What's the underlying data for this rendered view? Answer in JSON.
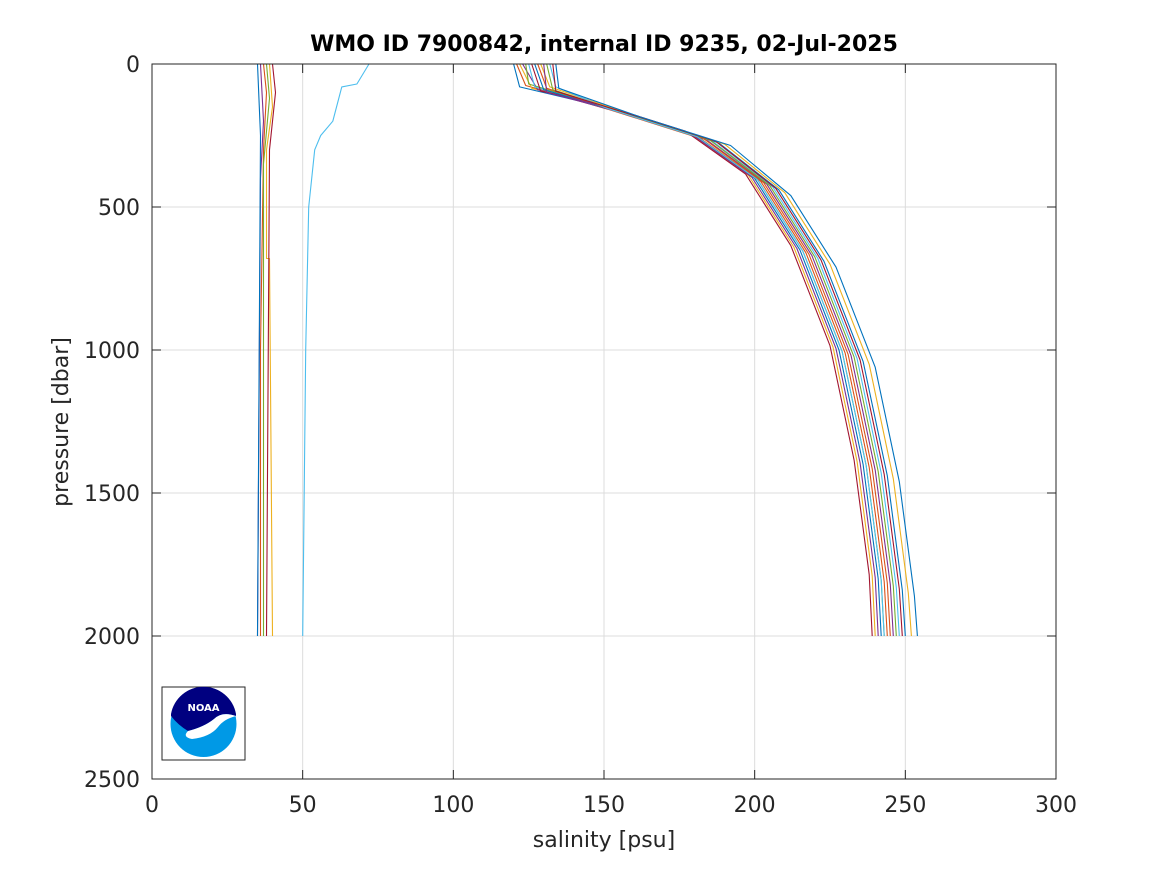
{
  "chart_data": {
    "type": "line",
    "title": "WMO ID 7900842, internal ID 9235, 02-Jul-2025",
    "xlabel": "salinity [psu]",
    "ylabel": "pressure [dbar]",
    "xlim": [
      0,
      300
    ],
    "ylim": [
      0,
      2500
    ],
    "y_reversed": true,
    "grid": true,
    "legend": "none",
    "x_ticks": [
      "0",
      "50",
      "100",
      "150",
      "200",
      "250",
      "300"
    ],
    "y_ticks": [
      "0",
      "500",
      "1000",
      "1500",
      "2000",
      "2500"
    ],
    "logo": "NOAA",
    "series": [
      {
        "color": "#0072BD",
        "points": [
          [
            120,
            0
          ],
          [
            122,
            80
          ],
          [
            150,
            150
          ],
          [
            180,
            250
          ],
          [
            200,
            400
          ],
          [
            215,
            650
          ],
          [
            228,
            1000
          ],
          [
            236,
            1400
          ],
          [
            241,
            1800
          ],
          [
            242,
            2000
          ]
        ]
      },
      {
        "color": "#D95319",
        "points": [
          [
            121,
            0
          ],
          [
            124,
            75
          ],
          [
            152,
            160
          ],
          [
            182,
            260
          ],
          [
            202,
            410
          ],
          [
            217,
            660
          ],
          [
            230,
            1010
          ],
          [
            238,
            1410
          ],
          [
            243,
            1810
          ],
          [
            244,
            2000
          ]
        ]
      },
      {
        "color": "#EDB120",
        "points": [
          [
            122,
            0
          ],
          [
            126,
            85
          ],
          [
            148,
            140
          ],
          [
            178,
            240
          ],
          [
            198,
            390
          ],
          [
            213,
            640
          ],
          [
            226,
            990
          ],
          [
            234,
            1390
          ],
          [
            239,
            1790
          ],
          [
            240,
            2000
          ]
        ]
      },
      {
        "color": "#7E2F8E",
        "points": [
          [
            123,
            0
          ],
          [
            128,
            90
          ],
          [
            154,
            165
          ],
          [
            184,
            265
          ],
          [
            204,
            420
          ],
          [
            219,
            670
          ],
          [
            232,
            1020
          ],
          [
            240,
            1420
          ],
          [
            245,
            1820
          ],
          [
            246,
            2000
          ]
        ]
      },
      {
        "color": "#77AC30",
        "points": [
          [
            124,
            0
          ],
          [
            125,
            70
          ],
          [
            150,
            150
          ],
          [
            181,
            255
          ],
          [
            201,
            405
          ],
          [
            216,
            655
          ],
          [
            229,
            1005
          ],
          [
            237,
            1405
          ],
          [
            242,
            1805
          ],
          [
            243,
            2000
          ]
        ]
      },
      {
        "color": "#4DBEEE",
        "points": [
          [
            125,
            0
          ],
          [
            127,
            80
          ],
          [
            156,
            170
          ],
          [
            186,
            270
          ],
          [
            206,
            430
          ],
          [
            221,
            680
          ],
          [
            234,
            1030
          ],
          [
            242,
            1430
          ],
          [
            247,
            1830
          ],
          [
            248,
            2000
          ]
        ]
      },
      {
        "color": "#A2142F",
        "points": [
          [
            126,
            0
          ],
          [
            129,
            95
          ],
          [
            147,
            135
          ],
          [
            177,
            235
          ],
          [
            197,
            385
          ],
          [
            212,
            635
          ],
          [
            225,
            985
          ],
          [
            233,
            1385
          ],
          [
            238,
            1785
          ],
          [
            239,
            2000
          ]
        ]
      },
      {
        "color": "#0072BD",
        "points": [
          [
            127,
            0
          ],
          [
            130,
            90
          ],
          [
            158,
            175
          ],
          [
            188,
            275
          ],
          [
            208,
            440
          ],
          [
            223,
            690
          ],
          [
            236,
            1040
          ],
          [
            244,
            1440
          ],
          [
            249,
            1840
          ],
          [
            250,
            2000
          ]
        ]
      },
      {
        "color": "#D95319",
        "points": [
          [
            128,
            0
          ],
          [
            131,
            85
          ],
          [
            153,
            160
          ],
          [
            183,
            260
          ],
          [
            203,
            415
          ],
          [
            218,
            665
          ],
          [
            231,
            1015
          ],
          [
            239,
            1415
          ],
          [
            244,
            1815
          ],
          [
            245,
            2000
          ]
        ]
      },
      {
        "color": "#EDB120",
        "points": [
          [
            129,
            0
          ],
          [
            132,
            80
          ],
          [
            160,
            180
          ],
          [
            190,
            280
          ],
          [
            210,
            450
          ],
          [
            225,
            700
          ],
          [
            238,
            1050
          ],
          [
            246,
            1450
          ],
          [
            251,
            1850
          ],
          [
            252,
            2000
          ]
        ]
      },
      {
        "color": "#7E2F8E",
        "points": [
          [
            130,
            0
          ],
          [
            131,
            100
          ],
          [
            149,
            145
          ],
          [
            179,
            245
          ],
          [
            199,
            395
          ],
          [
            214,
            645
          ],
          [
            227,
            995
          ],
          [
            235,
            1395
          ],
          [
            240,
            1795
          ],
          [
            241,
            2000
          ]
        ]
      },
      {
        "color": "#77AC30",
        "points": [
          [
            131,
            0
          ],
          [
            133,
            90
          ],
          [
            155,
            165
          ],
          [
            185,
            265
          ],
          [
            205,
            425
          ],
          [
            220,
            675
          ],
          [
            233,
            1025
          ],
          [
            241,
            1425
          ],
          [
            246,
            1825
          ],
          [
            247,
            2000
          ]
        ]
      },
      {
        "color": "#4DBEEE",
        "points": [
          [
            132,
            0
          ],
          [
            134,
            80
          ],
          [
            151,
            155
          ],
          [
            181,
            255
          ],
          [
            201,
            405
          ],
          [
            216,
            655
          ],
          [
            229,
            1005
          ],
          [
            237,
            1405
          ],
          [
            242,
            1805
          ],
          [
            243,
            2000
          ]
        ]
      },
      {
        "color": "#A2142F",
        "points": [
          [
            133,
            0
          ],
          [
            134,
            95
          ],
          [
            157,
            170
          ],
          [
            187,
            270
          ],
          [
            207,
            435
          ],
          [
            222,
            685
          ],
          [
            235,
            1035
          ],
          [
            243,
            1435
          ],
          [
            248,
            1835
          ],
          [
            249,
            2000
          ]
        ]
      },
      {
        "color": "#0072BD",
        "points": [
          [
            134,
            0
          ],
          [
            135,
            85
          ],
          [
            162,
            185
          ],
          [
            192,
            285
          ],
          [
            212,
            460
          ],
          [
            227,
            710
          ],
          [
            240,
            1060
          ],
          [
            248,
            1460
          ],
          [
            253,
            1860
          ],
          [
            254,
            2000
          ]
        ]
      },
      {
        "color": "#D95319",
        "points": [
          [
            37,
            0
          ],
          [
            38,
            100
          ],
          [
            37,
            300
          ],
          [
            36,
            1000
          ],
          [
            36,
            2000
          ]
        ]
      },
      {
        "color": "#EDB120",
        "points": [
          [
            39,
            0
          ],
          [
            40,
            150
          ],
          [
            38,
            300
          ],
          [
            38,
            680
          ],
          [
            39,
            680
          ],
          [
            40,
            2000
          ]
        ]
      },
      {
        "color": "#7E2F8E",
        "points": [
          [
            36,
            0
          ],
          [
            37,
            200
          ],
          [
            36,
            400
          ],
          [
            35,
            2000
          ]
        ]
      },
      {
        "color": "#77AC30",
        "points": [
          [
            38,
            0
          ],
          [
            39,
            120
          ],
          [
            37,
            350
          ],
          [
            37,
            2000
          ]
        ]
      },
      {
        "color": "#A2142F",
        "points": [
          [
            40,
            0
          ],
          [
            41,
            100
          ],
          [
            39,
            300
          ],
          [
            38,
            2000
          ]
        ]
      },
      {
        "color": "#0072BD",
        "points": [
          [
            35,
            0
          ],
          [
            36,
            250
          ],
          [
            35,
            2000
          ]
        ]
      },
      {
        "color": "#4DBEEE",
        "points": [
          [
            72,
            0
          ],
          [
            68,
            70
          ],
          [
            63,
            80
          ],
          [
            62,
            120
          ],
          [
            60,
            200
          ],
          [
            56,
            250
          ],
          [
            54,
            300
          ],
          [
            53,
            400
          ],
          [
            52,
            500
          ],
          [
            51,
            1000
          ],
          [
            50,
            2000
          ]
        ]
      },
      {
        "color": "#D95319",
        "points": [
          [
            8,
            0
          ],
          [
            35,
            0
          ]
        ]
      },
      {
        "color": "#0072BD",
        "points": [
          [
            40,
            0
          ],
          [
            120,
            0
          ]
        ]
      }
    ]
  }
}
